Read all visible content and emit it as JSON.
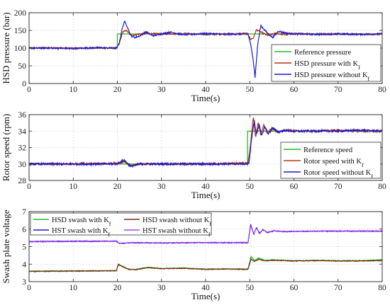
{
  "chart_data": [
    {
      "type": "line",
      "ylabel": "HSD pressure (bar)",
      "xlabel": "Time(s)",
      "xlim": [
        0,
        80
      ],
      "ylim": [
        0,
        200
      ],
      "xticks": [
        "0",
        "10",
        "20",
        "30",
        "40",
        "50",
        "60",
        "70",
        "80"
      ],
      "yticks": [
        "0",
        "50",
        "100",
        "150",
        "200"
      ],
      "grid": true,
      "legend_position": "bottom-right",
      "series": [
        {
          "name": "Reference pressure",
          "color": "#22bb22",
          "x": [
            0,
            20,
            20,
            50,
            50,
            80
          ],
          "y": [
            100,
            100,
            140,
            140,
            140,
            140
          ]
        },
        {
          "name": "HSD pressure with K_f",
          "color": "#b8330a",
          "x": [
            0,
            5,
            10,
            15,
            19.8,
            20.5,
            21.2,
            22,
            23,
            24,
            25,
            27,
            30,
            35,
            40,
            45,
            49.5,
            50.2,
            50.8,
            51.5,
            52.5,
            54,
            56,
            58,
            60,
            65,
            70,
            75,
            80
          ],
          "y": [
            100,
            101,
            99,
            101,
            100,
            115,
            145,
            150,
            138,
            137,
            140,
            141,
            140,
            141,
            139,
            140,
            141,
            125,
            128,
            152,
            145,
            136,
            142,
            138,
            141,
            140,
            140,
            139,
            140
          ]
        },
        {
          "name": "HSD pressure without K_f",
          "color": "#1a1acc",
          "x": [
            0,
            5,
            10,
            15,
            19.8,
            20.4,
            21,
            21.6,
            22.3,
            23,
            24,
            25,
            26.5,
            28,
            30,
            32,
            35,
            40,
            45,
            49.6,
            50.2,
            50.7,
            51.2,
            51.8,
            52.5,
            53.3,
            54.2,
            55.2,
            56.5,
            58,
            60,
            65,
            70,
            75,
            80
          ],
          "y": [
            100,
            100,
            99,
            101,
            100,
            112,
            150,
            176,
            160,
            135,
            130,
            134,
            146,
            135,
            140,
            145,
            138,
            141,
            139,
            140,
            110,
            75,
            18,
            110,
            164,
            152,
            140,
            130,
            148,
            143,
            140,
            139,
            140,
            139,
            140
          ]
        }
      ]
    },
    {
      "type": "line",
      "ylabel": "Rotor speed (rpm)",
      "xlabel": "Time(s)",
      "xlim": [
        0,
        80
      ],
      "ylim": [
        28,
        36
      ],
      "xticks": [
        "0",
        "10",
        "20",
        "30",
        "40",
        "50",
        "60",
        "70",
        "80"
      ],
      "yticks": [
        "28",
        "30",
        "32",
        "34",
        "36"
      ],
      "grid": true,
      "legend_position": "bottom-right",
      "series": [
        {
          "name": "Reference speed",
          "color": "#22bb22",
          "x": [
            0,
            49.5,
            49.5,
            80
          ],
          "y": [
            30,
            30,
            34,
            34
          ]
        },
        {
          "name": "Rotor speed with K_f",
          "color": "#b8330a",
          "x": [
            0,
            10,
            20,
            21.5,
            23,
            25,
            30,
            40,
            49.6,
            50.2,
            50.8,
            51.3,
            51.9,
            52.5,
            53.2,
            54,
            55,
            56.5,
            58,
            60,
            65,
            70,
            75,
            80
          ],
          "y": [
            30,
            30,
            30.1,
            30.3,
            29.8,
            30,
            30,
            30,
            30.1,
            32.5,
            35.8,
            33.2,
            35,
            33.5,
            34.8,
            33.6,
            34.4,
            33.8,
            34.1,
            34,
            34,
            34.1,
            34,
            34
          ]
        },
        {
          "name": "Rotor speed without K_f",
          "color": "#1a1acc",
          "x": [
            0,
            10,
            20,
            21.5,
            23,
            25,
            30,
            40,
            49.8,
            50.4,
            51,
            51.5,
            52.1,
            52.7,
            53.4,
            54.2,
            55.2,
            56.5,
            58,
            60,
            65,
            70,
            75,
            80
          ],
          "y": [
            30,
            30,
            30,
            30.5,
            29.7,
            30,
            30,
            30,
            30,
            33,
            35.3,
            33.6,
            34.8,
            33.4,
            34.6,
            33.7,
            34.3,
            33.9,
            34.1,
            34,
            34,
            34,
            34.1,
            34
          ]
        }
      ]
    },
    {
      "type": "line",
      "ylabel": "Swash plate voltage",
      "xlabel": "Time(s)",
      "xlim": [
        0,
        80
      ],
      "ylim": [
        3,
        7
      ],
      "xticks": [
        "0",
        "10",
        "20",
        "30",
        "40",
        "50",
        "60",
        "70",
        "80"
      ],
      "yticks": [
        "3",
        "4",
        "5",
        "6",
        "7"
      ],
      "grid": true,
      "legend_position": "top",
      "series": [
        {
          "name": "HSD swash with K_f",
          "color": "#22bb22",
          "x": [
            0,
            10,
            19.8,
            20.2,
            21,
            22.5,
            24,
            27,
            30,
            35,
            40,
            45,
            49.6,
            50.3,
            51,
            52,
            53.5,
            55,
            60,
            65,
            70,
            75,
            80
          ],
          "y": [
            3.6,
            3.62,
            3.63,
            4.0,
            3.9,
            3.72,
            3.7,
            3.82,
            3.75,
            3.78,
            3.72,
            3.73,
            3.72,
            4.45,
            4.2,
            4.35,
            4.2,
            4.25,
            4.2,
            4.22,
            4.2,
            4.2,
            4.25
          ]
        },
        {
          "name": "HSD swash without K_f",
          "color": "#7a2a10",
          "x": [
            0,
            10,
            19.8,
            20.2,
            21,
            22.5,
            24,
            27,
            30,
            35,
            40,
            45,
            49.6,
            50.3,
            51,
            52,
            53.5,
            55,
            60,
            65,
            70,
            75,
            80
          ],
          "y": [
            3.58,
            3.6,
            3.62,
            3.98,
            3.88,
            3.7,
            3.68,
            3.8,
            3.74,
            3.76,
            3.7,
            3.72,
            3.7,
            4.3,
            4.15,
            4.28,
            4.18,
            4.22,
            4.18,
            4.2,
            4.18,
            4.18,
            4.2
          ]
        },
        {
          "name": "HST swash with K_f",
          "color": "#1a1acc",
          "x": [
            0,
            10,
            19.8,
            20.3,
            21,
            23,
            30,
            40,
            49.6,
            50.2,
            50.9,
            51.5,
            52.2,
            53,
            54,
            55.5,
            58,
            60,
            70,
            80
          ],
          "y": [
            5.28,
            5.3,
            5.3,
            5.2,
            5.18,
            5.22,
            5.2,
            5.22,
            5.22,
            6.3,
            5.7,
            6.1,
            5.75,
            5.98,
            5.8,
            5.9,
            5.85,
            5.87,
            5.88,
            5.88
          ]
        },
        {
          "name": "HST swash without K_f",
          "color": "#aa44ee",
          "x": [
            0,
            10,
            19.8,
            20.3,
            21,
            23,
            30,
            40,
            49.6,
            50.2,
            50.9,
            51.5,
            52.2,
            53,
            54,
            55.5,
            58,
            60,
            70,
            80
          ],
          "y": [
            5.3,
            5.32,
            5.32,
            5.22,
            5.2,
            5.24,
            5.22,
            5.24,
            5.24,
            6.2,
            5.75,
            6.05,
            5.8,
            5.95,
            5.83,
            5.9,
            5.87,
            5.88,
            5.9,
            5.9
          ]
        }
      ]
    }
  ],
  "legends": [
    [
      {
        "label": "Reference pressure",
        "sub": "",
        "color": "#22bb22"
      },
      {
        "label": "HSD pressure with K",
        "sub": "f",
        "color": "#b8330a"
      },
      {
        "label": "HSD pressure without K",
        "sub": "f",
        "color": "#1a1acc"
      }
    ],
    [
      {
        "label": "Reference speed",
        "sub": "",
        "color": "#22bb22"
      },
      {
        "label": "Rotor speed with K",
        "sub": "f",
        "color": "#b8330a"
      },
      {
        "label": "Rotor speed without K",
        "sub": "f",
        "color": "#1a1acc"
      }
    ],
    [
      {
        "label": "HSD swash with K",
        "sub": "f",
        "color": "#22bb22"
      },
      {
        "label": "HSD swash without K",
        "sub": "f",
        "color": "#7a2a10"
      },
      {
        "label": "HST swash with K",
        "sub": "f",
        "color": "#1a1acc"
      },
      {
        "label": "HST swash without K",
        "sub": "f",
        "color": "#aa44ee"
      }
    ]
  ]
}
